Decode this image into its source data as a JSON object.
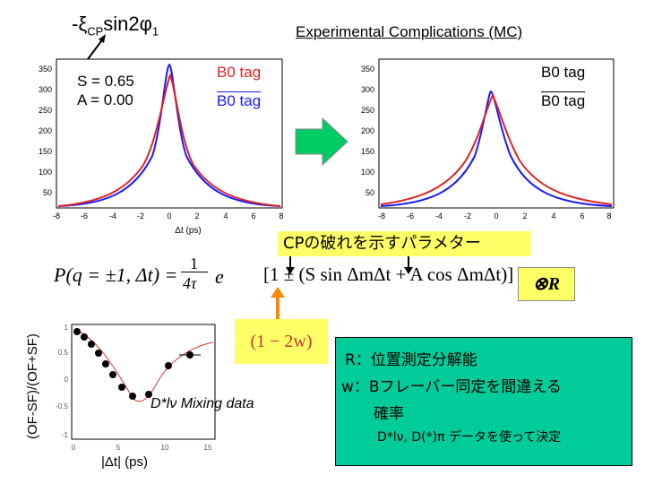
{
  "header": {
    "cp_term": "-ξ",
    "cp_sub": "CP",
    "cp_rest": "sin2φ",
    "cp_sub2": "1",
    "right_title": "Experimental Complications (MC)"
  },
  "left_plot": {
    "param_s": "S = 0.65",
    "param_a": "A = 0.00",
    "tag_b0": "B0 tag",
    "tag_b0bar": "B0 tag",
    "y_ticks": [
      "350",
      "300",
      "250",
      "200",
      "150",
      "100",
      "50"
    ],
    "x_ticks": [
      "-8",
      "-6",
      "-4",
      "-2",
      "0",
      "2",
      "4",
      "6",
      "8"
    ],
    "x_label": "Δt (ps)"
  },
  "right_plot": {
    "tag_b0": "B0 tag",
    "tag_b0bar": "B0 tag",
    "y_ticks": [
      "350",
      "300",
      "250",
      "200",
      "150",
      "100",
      "50"
    ],
    "x_ticks": [
      "-8",
      "-6",
      "-4",
      "-2",
      "0",
      "2",
      "4",
      "6",
      "8"
    ]
  },
  "annotation": {
    "jp_title": "CPの破れを示すパラメター",
    "formula_lhs": "P(q = ±1, Δt) =",
    "formula_frac_num": "1",
    "formula_frac_den": "4τ",
    "formula_rhs": "[1 ± (S sin ΔmΔt + A cos ΔmΔt)]",
    "r_box": "⊗R",
    "w_box": "(1 − 2w)"
  },
  "mixing_plot": {
    "y_label": "(OF-SF)/(OF+SF)",
    "x_label": "|Δt| (ps)",
    "legend": "D*lν Mixing data",
    "y_ticks": [
      "1",
      "0.5",
      "0",
      "-0.5",
      "-1"
    ],
    "x_ticks": [
      "0",
      "5",
      "10",
      "15"
    ]
  },
  "info_box": {
    "line1": "R：位置測定分解能",
    "line2": "w：Bフレーバー同定を間違える",
    "line3": "確率",
    "line4": "D*lν, D(*)π データを使って決定"
  },
  "colors": {
    "blue": "#1a1aff",
    "red": "#dd2222",
    "yellow": "#ffff66",
    "green": "#00cc99",
    "arrow_fill": "#00cc66",
    "orange": "#ff8800"
  }
}
